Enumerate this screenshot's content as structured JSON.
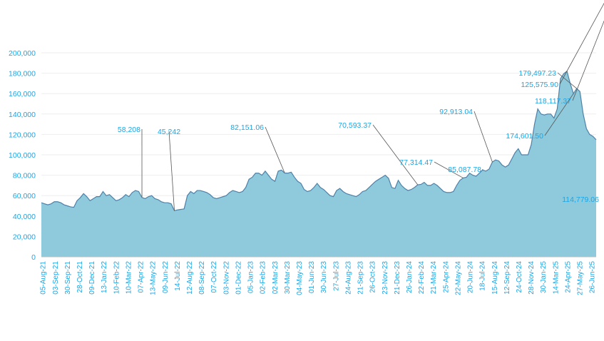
{
  "chart_data": {
    "type": "area",
    "title": "",
    "xlabel": "",
    "ylabel": "",
    "ylim": [
      0,
      200000
    ],
    "yticks": [
      "0",
      "20,000",
      "40,000",
      "60,000",
      "80,000",
      "100,000",
      "120,000",
      "140,000",
      "160,000",
      "180,000",
      "200,000"
    ],
    "ytick_values": [
      0,
      20000,
      40000,
      60000,
      80000,
      100000,
      120000,
      140000,
      160000,
      180000,
      200000
    ],
    "xticks": [
      "05-Aug-21",
      "03-Sep-21",
      "30-Sep-21",
      "28-Oct-21",
      "09-Dec-21",
      "13-Jan-22",
      "10-Feb-22",
      "10-Mar-22",
      "07-Apr-22",
      "13-May-22",
      "09-Jun-22",
      "14-Jul-22",
      "12-Aug-22",
      "08-Sep-22",
      "07-Oct-22",
      "03-Nov-22",
      "01-Dec-22",
      "05-Jan-23",
      "02-Feb-23",
      "02-Mar-23",
      "30-Mar-23",
      "04-May-23",
      "01-Jun-23",
      "30-Jun-23",
      "27-Jul-23",
      "24-Aug-23",
      "21-Sep-23",
      "26-Oct-23",
      "23-Nov-23",
      "21-Dec-23",
      "26-Jan-24",
      "22-Feb-24",
      "21-Mar-24",
      "25-Apr-24",
      "22-May-24",
      "20-Jun-24",
      "18-Jul-24",
      "15-Aug-24",
      "12-Sep-24",
      "24-Oct-24",
      "28-Nov-24",
      "30-Jan-25",
      "14-Mar-25",
      "24-Apr-25",
      "27-May-25",
      "26-Jun-25"
    ],
    "grid": false,
    "fill_color": "#8ecadc",
    "line_color": "#4f81a8",
    "text_color": "#1aa6e6",
    "series": [
      {
        "values": [
          53000,
          52000,
          51000,
          52000,
          54000,
          54000,
          53000,
          51000,
          50000,
          49000,
          48500,
          55000,
          58000,
          62000,
          59000,
          55000,
          57000,
          59000,
          59000,
          64000,
          60000,
          61000,
          58000,
          55000,
          56000,
          58000,
          61000,
          59000,
          63000,
          65000,
          64000,
          58208,
          57000,
          59000,
          60000,
          57000,
          56000,
          54000,
          53000,
          53000,
          52000,
          45242,
          46000,
          46500,
          47000,
          60000,
          64000,
          62000,
          65000,
          65000,
          64000,
          63000,
          61000,
          58000,
          57000,
          58000,
          59000,
          60000,
          63000,
          65000,
          64000,
          63000,
          64000,
          68000,
          76000,
          78000,
          82000,
          82000,
          80000,
          84000,
          80000,
          76000,
          74000,
          84000,
          85000,
          82151.06,
          82000,
          83000,
          78000,
          74000,
          72000,
          66000,
          64000,
          65000,
          68000,
          72000,
          68000,
          66000,
          63000,
          60000,
          59000,
          65000,
          67000,
          64000,
          62000,
          61000,
          60000,
          59000,
          61000,
          64000,
          65000,
          68000,
          71000,
          74000,
          76000,
          78000,
          80000,
          77000,
          68000,
          67000,
          75000,
          70000,
          67000,
          65000,
          66000,
          68000,
          70593.37,
          71000,
          73000,
          70000,
          70000,
          72000,
          70000,
          67000,
          64000,
          63000,
          63000,
          64000,
          70000,
          75000,
          77314.47,
          78000,
          82000,
          80000,
          79000,
          82000,
          85087.78,
          84000,
          86000,
          92913.04,
          95000,
          94000,
          90000,
          88000,
          90000,
          96000,
          102000,
          106000,
          100000,
          100000,
          100000,
          110000,
          130000,
          145000,
          140000,
          139000,
          140000,
          140000,
          136000,
          145000,
          174601.5,
          179497.23,
          182000,
          170000,
          160000,
          165000,
          162000,
          140000,
          125575.9,
          120000,
          118117.37,
          114779.06
        ]
      }
    ],
    "annotations": [
      {
        "text": "58,208",
        "index": 31
      },
      {
        "text": "45,242",
        "index": 41
      },
      {
        "text": "82,151.06",
        "index": 75
      },
      {
        "text": "70,593.37",
        "index": 116
      },
      {
        "text": "77,314.47",
        "index": 130
      },
      {
        "text": "85,087.78",
        "index": 136
      },
      {
        "text": "92,913.04",
        "index": 139
      },
      {
        "text": "174,601.50",
        "index": 164
      },
      {
        "text": "179,497.23",
        "index": 165
      },
      {
        "text": "125,575.90",
        "index": 174
      },
      {
        "text": "118,117.37",
        "index": 176
      },
      {
        "text": "114,779.06",
        "index": 177
      }
    ]
  }
}
